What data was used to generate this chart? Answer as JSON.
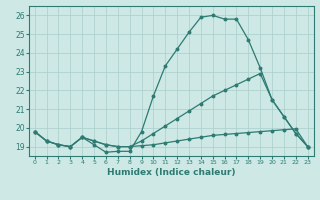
{
  "bg_color": "#cde8e5",
  "grid_color": "#aacfcc",
  "line_color": "#2d7b72",
  "xlabel": "Humidex (Indice chaleur)",
  "xlim": [
    -0.5,
    23.5
  ],
  "ylim": [
    18.5,
    26.5
  ],
  "yticks": [
    19,
    20,
    21,
    22,
    23,
    24,
    25,
    26
  ],
  "xticks": [
    0,
    1,
    2,
    3,
    4,
    5,
    6,
    7,
    8,
    9,
    10,
    11,
    12,
    13,
    14,
    15,
    16,
    17,
    18,
    19,
    20,
    21,
    22,
    23
  ],
  "line1_x": [
    0,
    1,
    2,
    3,
    4,
    5,
    6,
    7,
    8,
    9,
    10,
    11,
    12,
    13,
    14,
    15,
    16,
    17,
    18,
    19,
    20,
    21,
    22,
    23
  ],
  "line1_y": [
    19.8,
    19.3,
    19.1,
    19.0,
    19.5,
    19.1,
    18.7,
    18.75,
    18.75,
    19.8,
    21.7,
    23.3,
    24.2,
    25.1,
    25.9,
    26.0,
    25.8,
    25.8,
    24.7,
    23.2,
    21.5,
    20.6,
    19.7,
    19.0
  ],
  "line2_x": [
    0,
    1,
    2,
    3,
    4,
    5,
    6,
    7,
    8,
    9,
    10,
    11,
    12,
    13,
    14,
    15,
    16,
    17,
    18,
    19,
    20,
    21,
    22,
    23
  ],
  "line2_y": [
    19.8,
    19.3,
    19.1,
    19.0,
    19.5,
    19.3,
    19.1,
    19.0,
    19.0,
    19.3,
    19.7,
    20.1,
    20.5,
    20.9,
    21.3,
    21.7,
    22.0,
    22.3,
    22.6,
    22.9,
    21.5,
    20.6,
    19.7,
    19.0
  ],
  "line3_x": [
    0,
    1,
    2,
    3,
    4,
    5,
    6,
    7,
    8,
    9,
    10,
    11,
    12,
    13,
    14,
    15,
    16,
    17,
    18,
    19,
    20,
    21,
    22,
    23
  ],
  "line3_y": [
    19.8,
    19.3,
    19.1,
    19.0,
    19.5,
    19.3,
    19.1,
    19.0,
    19.0,
    19.05,
    19.1,
    19.2,
    19.3,
    19.4,
    19.5,
    19.6,
    19.65,
    19.7,
    19.75,
    19.8,
    19.85,
    19.9,
    19.95,
    19.0
  ]
}
